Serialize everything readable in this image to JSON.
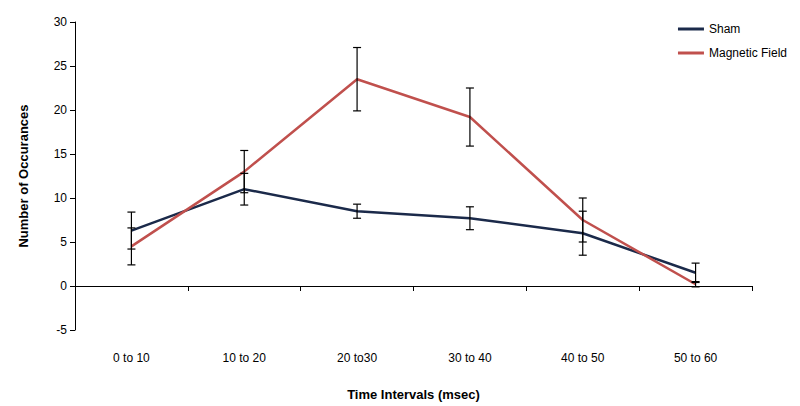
{
  "chart_data": {
    "type": "line",
    "x_label": "Time Intervals (msec)",
    "y_label": "Number of Occurances",
    "categories": [
      "0 to 10",
      "10 to 20",
      "20 to30",
      "30 to 40",
      "40 to 50",
      "50 to 60"
    ],
    "series": [
      {
        "name": "Sham",
        "color": "#1b2a4a",
        "values": [
          6.3,
          11,
          8.5,
          7.7,
          6,
          1.5
        ],
        "errors": [
          2.1,
          1.8,
          0.8,
          1.3,
          2.5,
          1.1
        ]
      },
      {
        "name": "Magnetic Field",
        "color": "#c0504d",
        "values": [
          4.5,
          13,
          23.5,
          19.2,
          7.5,
          0.2
        ],
        "errors": [
          2.1,
          2.4,
          3.6,
          3.3,
          2.5,
          0.3
        ]
      }
    ],
    "ylim": [
      -5,
      30
    ],
    "yticks": [
      -5,
      0,
      5,
      10,
      15,
      20,
      25,
      30
    ],
    "grid": false,
    "legend": "top-right",
    "marker": "none"
  }
}
